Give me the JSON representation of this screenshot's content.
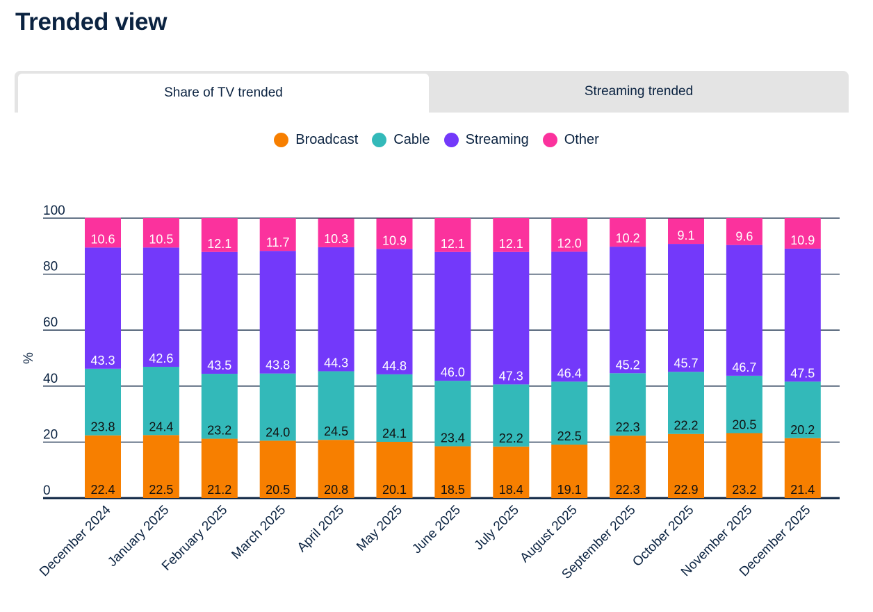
{
  "page": {
    "title": "Trended view"
  },
  "tabs": [
    {
      "label": "Share of TV trended",
      "active": true
    },
    {
      "label": "Streaming trended",
      "active": false
    }
  ],
  "colors": {
    "Broadcast": "#f77f00",
    "Cable": "#33b9b9",
    "Streaming": "#7339fa",
    "Other": "#fb329d",
    "text_dark": "#0b2341",
    "grid": "#0b2341"
  },
  "chart_data": {
    "type": "bar",
    "stacked": true,
    "title": "",
    "xlabel": "",
    "ylabel": "%",
    "ylim": [
      0,
      100
    ],
    "yticks": [
      0,
      20,
      40,
      60,
      80,
      100
    ],
    "grid": true,
    "legend_position": "top-center",
    "legend": [
      "Broadcast",
      "Cable",
      "Streaming",
      "Other"
    ],
    "categories": [
      "December 2024",
      "January 2025",
      "February 2025",
      "March 2025",
      "April 2025",
      "May 2025",
      "June 2025",
      "July 2025",
      "August 2025",
      "September 2025",
      "October 2025",
      "November 2025",
      "December 2025"
    ],
    "series": [
      {
        "name": "Broadcast",
        "values": [
          22.4,
          22.5,
          21.2,
          20.5,
          20.8,
          20.1,
          18.5,
          18.4,
          19.1,
          22.3,
          22.9,
          23.2,
          21.4
        ]
      },
      {
        "name": "Cable",
        "values": [
          23.8,
          24.4,
          23.2,
          24.0,
          24.5,
          24.1,
          23.4,
          22.2,
          22.5,
          22.3,
          22.2,
          20.5,
          20.2
        ]
      },
      {
        "name": "Streaming",
        "values": [
          43.3,
          42.6,
          43.5,
          43.8,
          44.3,
          44.8,
          46.0,
          47.3,
          46.4,
          45.2,
          45.7,
          46.7,
          47.5
        ]
      },
      {
        "name": "Other",
        "values": [
          10.6,
          10.5,
          12.1,
          11.7,
          10.3,
          10.9,
          12.1,
          12.1,
          12.0,
          10.2,
          9.1,
          9.6,
          10.9
        ]
      }
    ]
  }
}
